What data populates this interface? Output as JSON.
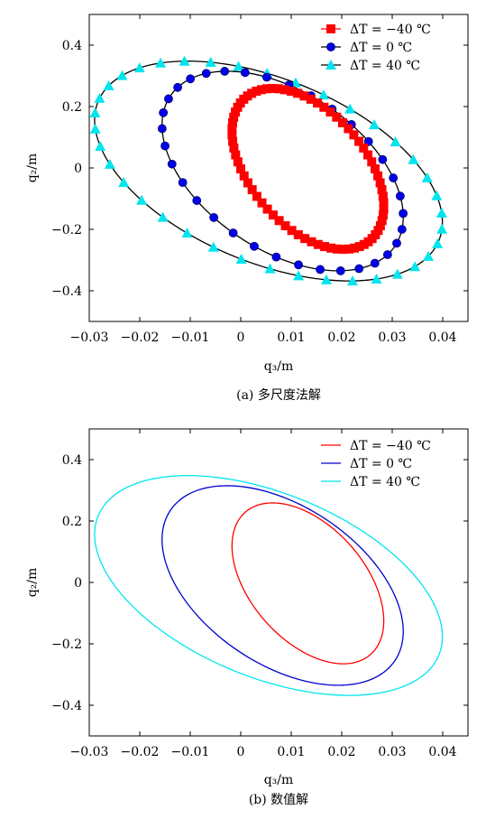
{
  "chart_data": [
    {
      "type": "scatter",
      "caption": "(a) 多尺度法解",
      "xlabel": "q₃/m",
      "ylabel": "q₂/m",
      "xlim": [
        -0.03,
        0.045
      ],
      "ylim": [
        -0.5,
        0.5
      ],
      "xticks": [
        -0.03,
        -0.02,
        -0.01,
        0,
        0.01,
        0.02,
        0.03,
        0.04
      ],
      "xtick_labels": [
        "−0.03",
        "−0.02",
        "−0.01",
        "0",
        "0.01",
        "0.02",
        "0.03",
        "0.04"
      ],
      "yticks": [
        -0.4,
        -0.2,
        0,
        0.2,
        0.4
      ],
      "ytick_labels": [
        "−0.4",
        "−0.2",
        "0",
        "0.2",
        "0.4"
      ],
      "legend_position": "top-right",
      "series": [
        {
          "name": "ΔT = −40 ℃",
          "marker": "square",
          "color": "#ff0000",
          "count": 72,
          "ellipse": {
            "xc": 0.0133,
            "yc": -0.003,
            "rx": 0.0133,
            "ry": 0.262,
            "tilt": 0.007
          }
        },
        {
          "name": "ΔT = 0 ℃",
          "marker": "circle",
          "color": "#0000ee",
          "count": 34,
          "ellipse": {
            "xc": 0.0083,
            "yc": -0.01,
            "rx": 0.0212,
            "ry": 0.325,
            "tilt": 0.011
          }
        },
        {
          "name": "ΔT = 40 ℃",
          "marker": "triangle",
          "color": "#00e5ee",
          "count": 38,
          "ellipse": {
            "xc": 0.0055,
            "yc": -0.01,
            "rx": 0.0305,
            "ry": 0.358,
            "tilt": 0.016
          }
        }
      ]
    },
    {
      "type": "line",
      "caption": "(b) 数值解",
      "xlabel": "q₃/m",
      "ylabel": "q₂/m",
      "xlim": [
        -0.03,
        0.045
      ],
      "ylim": [
        -0.5,
        0.5
      ],
      "xticks": [
        -0.03,
        -0.02,
        -0.01,
        0,
        0.01,
        0.02,
        0.03,
        0.04
      ],
      "xtick_labels": [
        "−0.03",
        "−0.02",
        "−0.01",
        "0",
        "0.01",
        "0.02",
        "0.03",
        "0.04"
      ],
      "yticks": [
        -0.4,
        -0.2,
        0,
        0.2,
        0.4
      ],
      "ytick_labels": [
        "−0.4",
        "−0.2",
        "0",
        "0.2",
        "0.4"
      ],
      "legend_position": "top-right",
      "series": [
        {
          "name": "ΔT = −40 ℃",
          "color": "#ff0000",
          "ellipse": {
            "xc": 0.0133,
            "yc": -0.003,
            "rx": 0.0133,
            "ry": 0.262,
            "tilt": 0.007
          }
        },
        {
          "name": "ΔT = 0 ℃",
          "color": "#0000cc",
          "ellipse": {
            "xc": 0.0083,
            "yc": -0.01,
            "rx": 0.0212,
            "ry": 0.325,
            "tilt": 0.011
          }
        },
        {
          "name": "ΔT = 40 ℃",
          "color": "#00e5ee",
          "ellipse": {
            "xc": 0.0055,
            "yc": -0.01,
            "rx": 0.0305,
            "ry": 0.358,
            "tilt": 0.016
          }
        }
      ]
    }
  ]
}
